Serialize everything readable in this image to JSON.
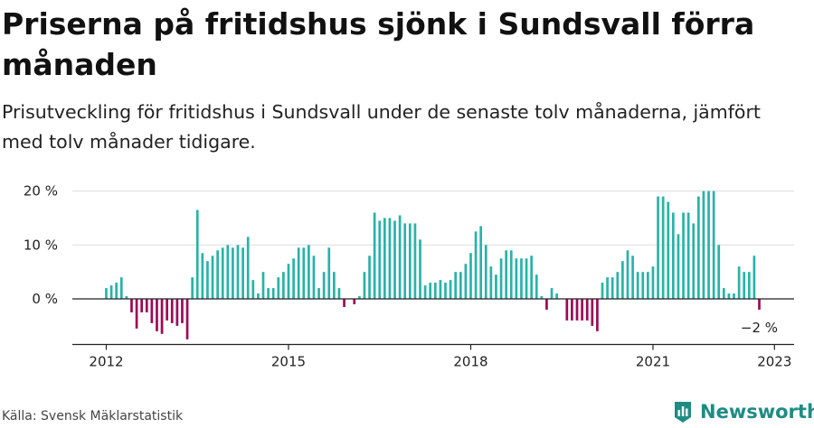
{
  "title": "Priserna på fritidshus sjönk i Sundsvall förra månaden",
  "subtitle": "Prisutveckling för fritidshus i Sundsvall under de senaste tolv månaderna, jämfört med tolv månader tidigare.",
  "source": "Källa: Svensk Mäklarstatistik",
  "brand": "Newsworthy",
  "colors": {
    "positive": "#2ab2a8",
    "negative": "#9a0a55",
    "grid": "#dddddd",
    "axis": "#222222",
    "brand": "#1f8c84"
  },
  "chart_data": {
    "type": "bar",
    "start": "2012-01",
    "end": "2023-01",
    "x_ticks": [
      "2012",
      "2015",
      "2018",
      "2021",
      "2023"
    ],
    "y_ticks": [
      "20 %",
      "10 %",
      "0 %"
    ],
    "y_tick_values": [
      20,
      10,
      0
    ],
    "ylim": [
      -8.5,
      21
    ],
    "grid": true,
    "last_label": "−2 %",
    "values": [
      2,
      2.5,
      3,
      4,
      0.5,
      -2.5,
      -5.5,
      -2.5,
      -2.5,
      -4.5,
      -6,
      -6.5,
      -4,
      -4.5,
      -5,
      -4.5,
      -7.5,
      4,
      16.5,
      8.5,
      7,
      8,
      9,
      9.5,
      10,
      9.5,
      10,
      9.5,
      11.5,
      3.5,
      1,
      5,
      2,
      2,
      4,
      5,
      6.5,
      7.5,
      9.5,
      9.5,
      10,
      8,
      2,
      5,
      9.5,
      5,
      2,
      -1.5,
      0,
      -1,
      0.5,
      5,
      8,
      16,
      14.5,
      15,
      15,
      14.5,
      15.5,
      14,
      14,
      14,
      11,
      2.5,
      3,
      3,
      3.5,
      3,
      3.5,
      5,
      5,
      6.5,
      8.5,
      12.5,
      13.5,
      10,
      6,
      4.5,
      7.5,
      9,
      9,
      7.5,
      7.5,
      7.5,
      8,
      4.5,
      0.5,
      -2,
      2,
      1,
      0,
      -4,
      -4,
      -4,
      -4,
      -4,
      -5,
      -6,
      3,
      4,
      4,
      5,
      7,
      9,
      8,
      5,
      5,
      5,
      6,
      19,
      19,
      18,
      16,
      12,
      16,
      16,
      14,
      19,
      20,
      20,
      20,
      10,
      2,
      1,
      1,
      6,
      5,
      5,
      8,
      -2
    ]
  }
}
